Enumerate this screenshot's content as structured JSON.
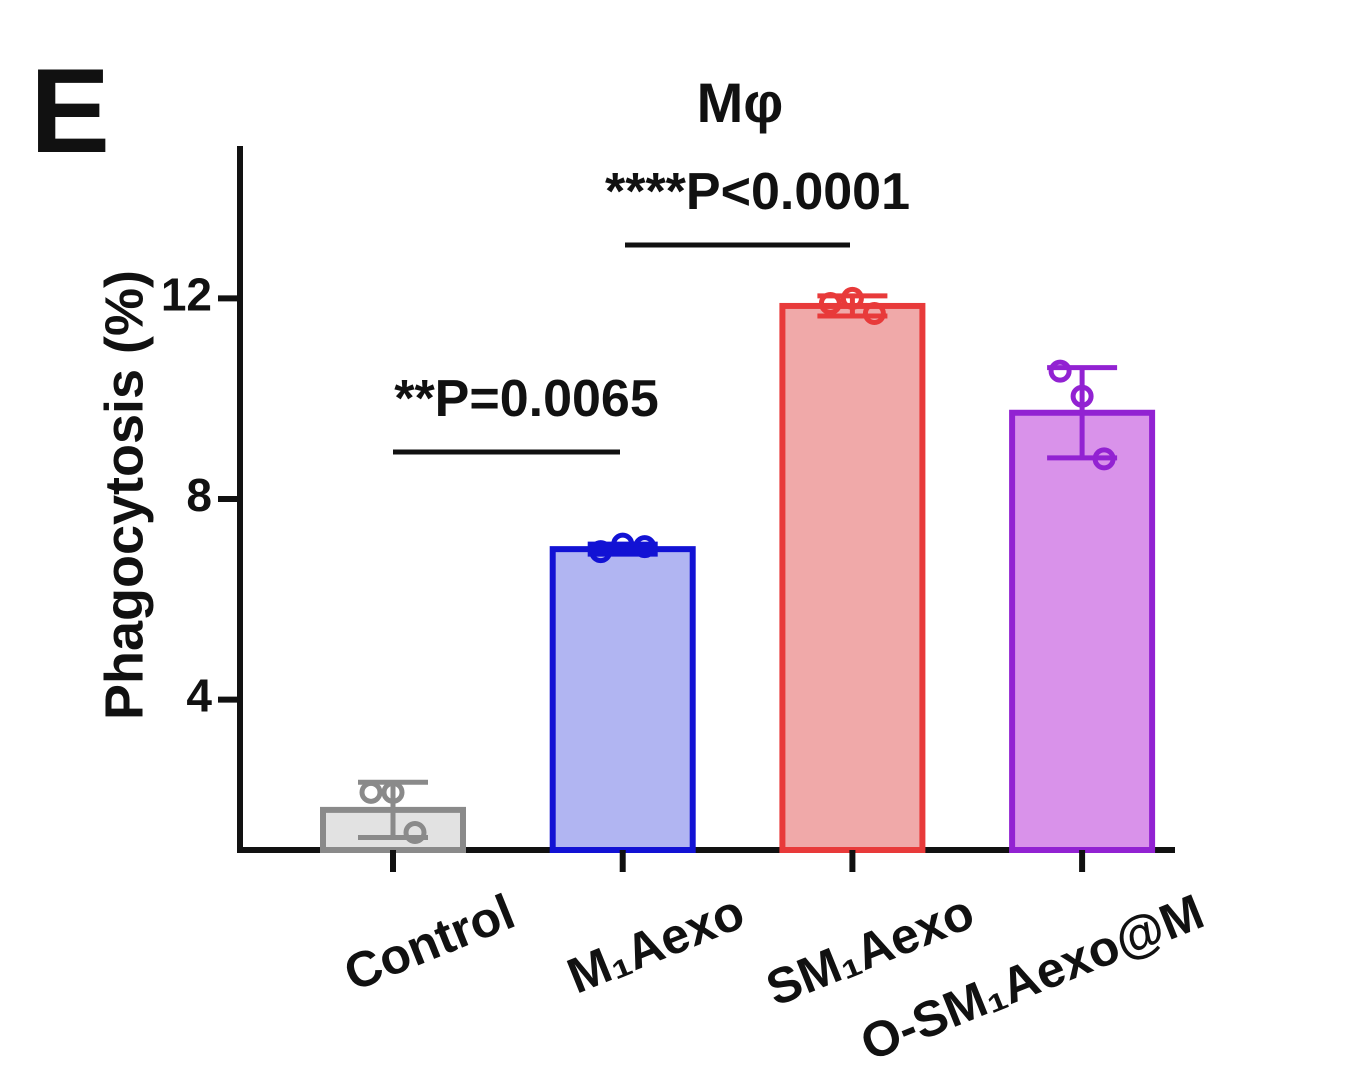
{
  "chart_data": {
    "type": "bar",
    "panel_label": "E",
    "title": "Mφ",
    "y_label": "Phagocytosis (%)",
    "categories": [
      "Control",
      "M₁Aexo",
      "SM₁Aexo",
      "O-SM₁Aexo@M"
    ],
    "values": [
      1.8,
      7.0,
      11.85,
      9.72
    ],
    "errors": [
      0.55,
      0.1,
      0.2,
      0.9
    ],
    "points": [
      [
        2.15,
        2.15,
        1.35
      ],
      [
        6.95,
        7.1,
        7.05
      ],
      [
        11.9,
        12.0,
        11.7
      ],
      [
        10.55,
        10.05,
        8.8
      ]
    ],
    "colors": [
      "#e2e2e2",
      "#b1b5f2",
      "#f0a9a9",
      "#d992ea"
    ],
    "edge_colors": [
      "#8a8a8a",
      "#1212d4",
      "#e83a3a",
      "#9222d2"
    ],
    "ylim": [
      1,
      15
    ],
    "yticks": [
      4,
      8,
      12
    ],
    "annotations": [
      "**P=0.0065",
      "****P<0.0001"
    ]
  }
}
